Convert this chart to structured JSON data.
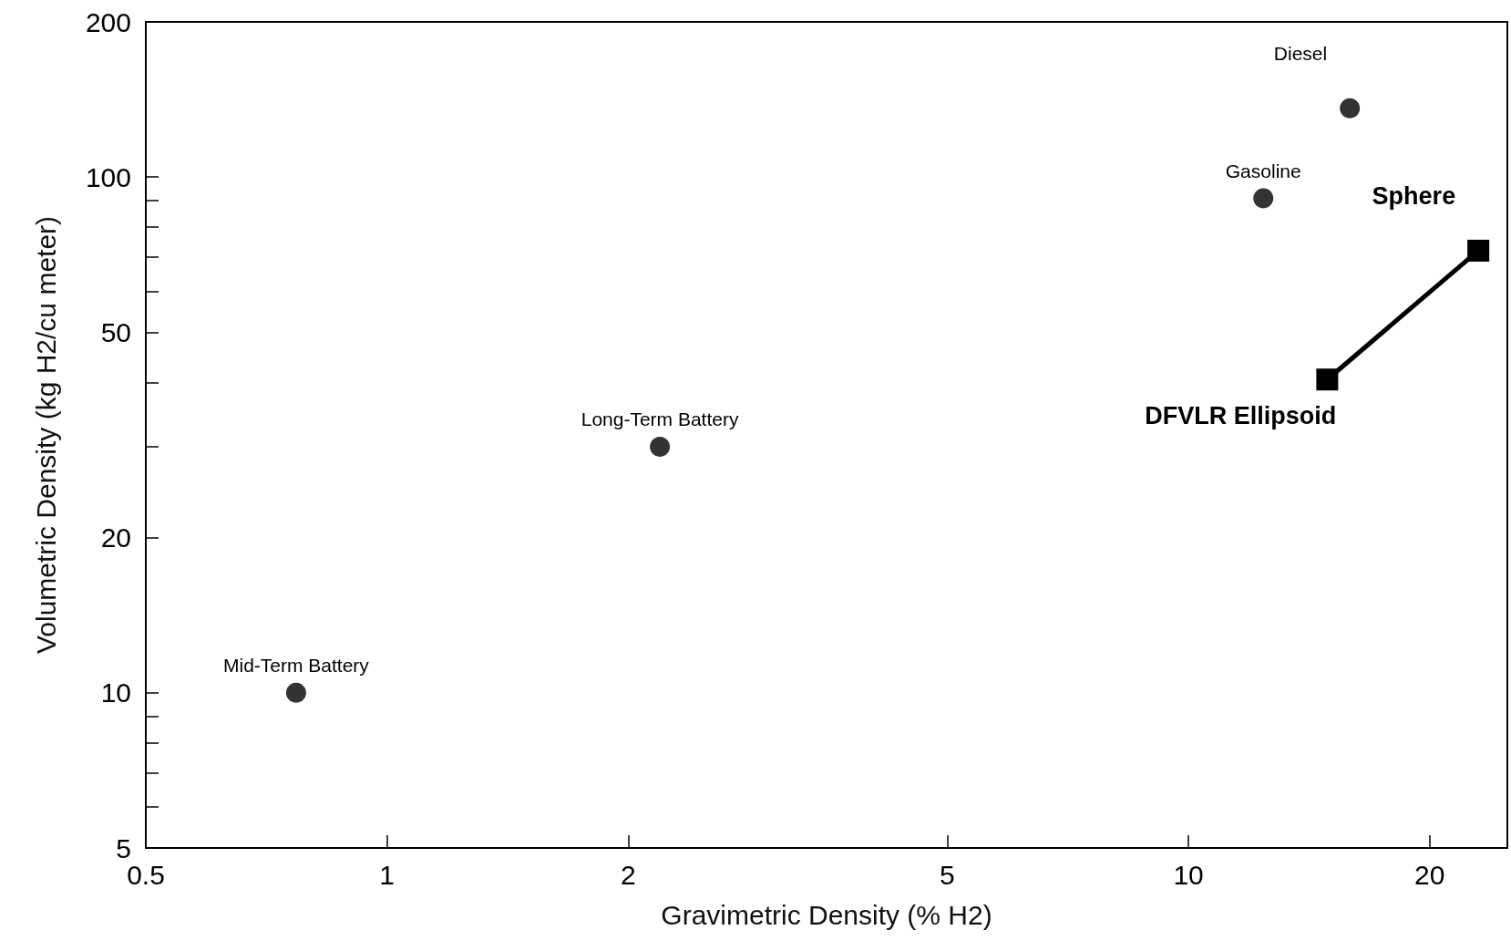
{
  "chart_data": {
    "type": "scatter",
    "xlabel": "Gravimetric Density (% H2)",
    "ylabel": "Volumetric Density (kg H2/cu meter)",
    "log": "xy",
    "grid": false,
    "xlim": [
      0.5,
      25
    ],
    "xticks": [
      0.5,
      1,
      2,
      5,
      10,
      20
    ],
    "ylim": [
      5,
      200
    ],
    "yticks": [
      5,
      {
        "value": 6,
        "label": null
      },
      {
        "value": 7,
        "label": null
      },
      {
        "value": 8,
        "label": null
      },
      {
        "value": 9,
        "label": null
      },
      10,
      20,
      {
        "value": 30,
        "label": null
      },
      {
        "value": 40,
        "label": null
      },
      50,
      {
        "value": 60,
        "label": null
      },
      {
        "value": 70,
        "label": null
      },
      {
        "value": 80,
        "label": null
      },
      {
        "value": 90,
        "label": null
      },
      100,
      200
    ],
    "series": [
      {
        "type": "scatter",
        "marker": "circle",
        "color": "#000000",
        "x": [
          0.77,
          2.19,
          12.4,
          15.9
        ],
        "values": [
          10,
          30,
          91,
          136
        ]
      },
      {
        "type": "line",
        "marker": "square",
        "line_style": "solid",
        "color": "#000000",
        "x": [
          14.9,
          23
        ],
        "values": [
          40.5,
          72
        ]
      }
    ],
    "annotations": [
      {
        "text": "Mid-Term Battery",
        "x": 0.77,
        "y": 10
      },
      {
        "text": "Long-Term Battery",
        "x": 2.19,
        "y": 30
      },
      {
        "text": "Gasoline",
        "x": 12.4,
        "y": 91
      },
      {
        "text": "Diesel",
        "x": 15.9,
        "y": 136
      },
      {
        "text": "Sphere",
        "x": 23,
        "y": 72
      },
      {
        "text": "DFVLR Ellipsoid",
        "x": 14.9,
        "y": 40.5
      }
    ]
  }
}
